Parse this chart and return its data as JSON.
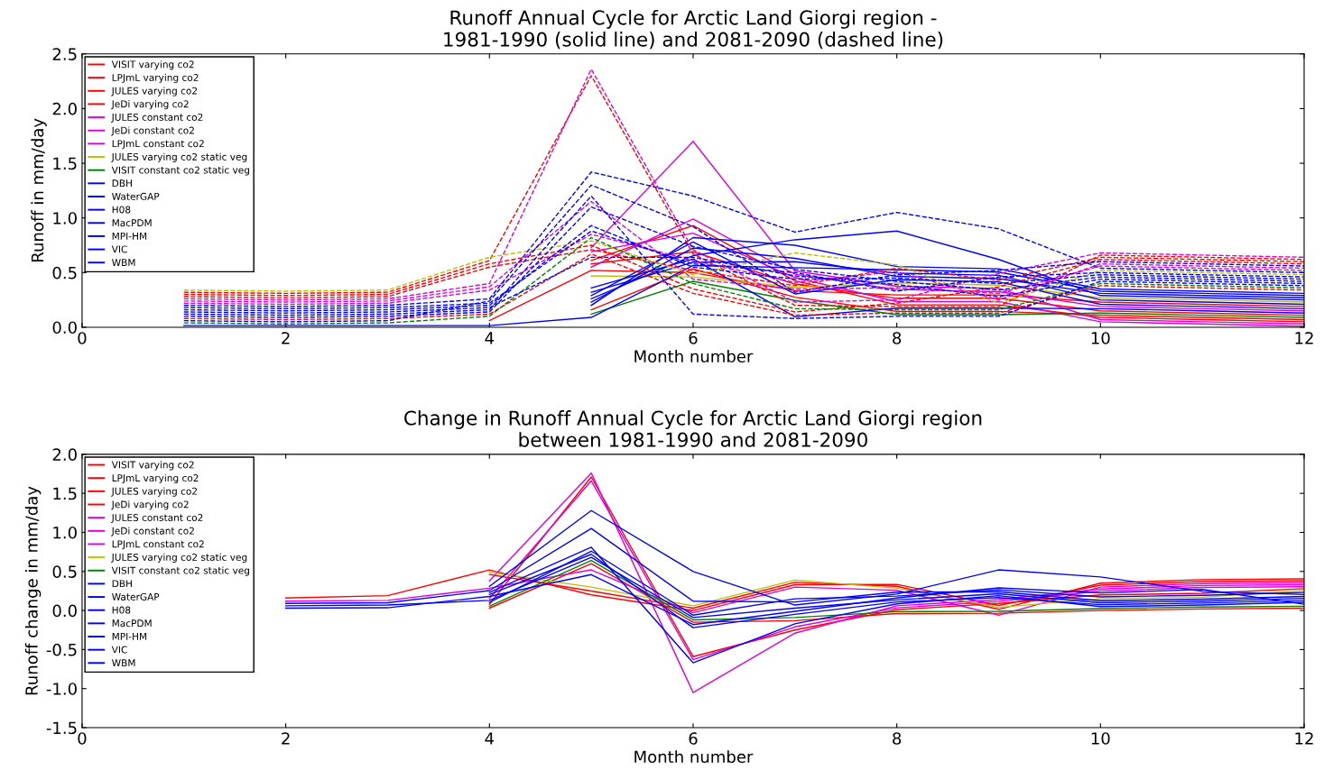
{
  "chart_data": [
    {
      "type": "line",
      "title": "Runoff Annual Cycle for Arctic Land Giorgi region -\n1981-1990 (solid line) and 2081-2090 (dashed line)",
      "xlabel": "Month number",
      "ylabel": "Runoff in mm/day",
      "x": [
        1,
        2,
        3,
        4,
        5,
        6,
        7,
        8,
        9,
        10,
        11,
        12
      ],
      "xlim": [
        0,
        12
      ],
      "xticks": [
        0,
        2,
        4,
        6,
        8,
        10,
        12
      ],
      "ylim": [
        0,
        2.5
      ],
      "yticks": [
        {
          "value": 0,
          "label": "0.0"
        },
        {
          "value": 0.5,
          "label": "0.5"
        },
        {
          "value": 1,
          "label": "1.0"
        },
        {
          "value": 1.5,
          "label": "1.5"
        },
        {
          "value": 2,
          "label": "2.0"
        },
        {
          "value": 2.5,
          "label": "2.5"
        }
      ],
      "grid": false,
      "legend": "top left",
      "series": [
        {
          "name": "VISIT varying co2",
          "color": "#ff0000",
          "line_style": "solid",
          "values": [
            null,
            null,
            null,
            null,
            0.58,
            0.69,
            0.395,
            0.265,
            0.265,
            0.15,
            0.13,
            0.11
          ]
        },
        {
          "name": "LPJmL varying co2",
          "color": "#ff0000",
          "line_style": "solid",
          "values": [
            null,
            null,
            null,
            null,
            0.61,
            0.93,
            0.425,
            0.205,
            0.205,
            0.09,
            0.07,
            0.05
          ]
        },
        {
          "name": "JULES varying co2",
          "color": "#ff0000",
          "line_style": "solid",
          "values": [
            null,
            null,
            null,
            0.06,
            0.52,
            0.5,
            0.335,
            0.295,
            0.295,
            0.23,
            0.21,
            0.19
          ]
        },
        {
          "name": "JeDi varying co2",
          "color": "#ff0000",
          "line_style": "solid",
          "values": [
            null,
            null,
            null,
            null,
            0.16,
            0.535,
            0.275,
            0.145,
            0.145,
            0.11,
            0.09,
            0.07
          ]
        },
        {
          "name": "JULES constant co2",
          "color": "#dd00dd",
          "line_style": "solid",
          "values": [
            null,
            null,
            null,
            null,
            0.55,
            0.99,
            0.485,
            0.345,
            0.325,
            0.19,
            0.17,
            0.15
          ]
        },
        {
          "name": "JeDi constant co2",
          "color": "#dd00dd",
          "line_style": "solid",
          "values": [
            null,
            null,
            null,
            null,
            0.73,
            1.7,
            0.515,
            0.375,
            0.355,
            0.07,
            0.05,
            0.03
          ]
        },
        {
          "name": "LPJmL constant co2",
          "color": "#dd00dd",
          "line_style": "solid",
          "values": [
            null,
            null,
            null,
            null,
            0.69,
            0.86,
            0.455,
            0.235,
            0.235,
            0.05,
            0.03,
            0.01
          ]
        },
        {
          "name": "JULES varying co2 static veg",
          "color": "#bfbf00",
          "line_style": "solid",
          "values": [
            null,
            null,
            null,
            null,
            0.47,
            0.46,
            0.365,
            0.405,
            0.385,
            0.27,
            0.25,
            0.23
          ]
        },
        {
          "name": "VISIT constant co2 static veg",
          "color": "#008000",
          "line_style": "solid",
          "values": [
            null,
            null,
            null,
            null,
            0.12,
            0.42,
            0.245,
            0.115,
            0.115,
            0.13,
            0.11,
            0.09
          ]
        },
        {
          "name": "DBH",
          "color": "#0000ff",
          "line_style": "solid",
          "values": [
            null,
            null,
            null,
            null,
            0.2,
            0.82,
            0.75,
            0.555,
            0.535,
            0.35,
            0.33,
            0.31
          ]
        },
        {
          "name": "WaterGAP",
          "color": "#0000ff",
          "line_style": "solid",
          "values": [
            null,
            null,
            null,
            null,
            0.26,
            0.655,
            0.8,
            0.88,
            0.62,
            0.29,
            0.27,
            0.25
          ]
        },
        {
          "name": "H08",
          "color": "#0000ff",
          "line_style": "solid",
          "values": [
            null,
            null,
            null,
            null,
            0.29,
            0.78,
            0.305,
            0.435,
            0.415,
            0.21,
            0.19,
            0.17
          ]
        },
        {
          "name": "MacPDM",
          "color": "#0000ff",
          "line_style": "solid",
          "values": [
            0.015,
            0.015,
            0.015,
            0.015,
            0.09,
            0.565,
            0.545,
            0.525,
            0.505,
            0.33,
            0.31,
            0.29
          ]
        },
        {
          "name": "MPI-HM",
          "color": "#0000ff",
          "line_style": "solid",
          "values": [
            null,
            null,
            null,
            null,
            0.32,
            0.595,
            0.6,
            0.495,
            0.475,
            0.25,
            0.23,
            0.21
          ]
        },
        {
          "name": "VIC",
          "color": "#0000ff",
          "line_style": "solid",
          "values": [
            null,
            null,
            null,
            null,
            0.23,
            0.725,
            0.63,
            0.465,
            0.445,
            0.31,
            0.29,
            0.27
          ]
        },
        {
          "name": "WBM",
          "color": "#0000ff",
          "line_style": "solid",
          "values": [
            null,
            null,
            null,
            null,
            0.36,
            0.625,
            0.095,
            0.175,
            0.175,
            0.17,
            0.15,
            0.13
          ]
        },
        {
          "color": "#ff0000",
          "line_style": "dashed",
          "values": [
            0.3,
            0.29,
            0.3,
            0.58,
            0.75,
            0.35,
            0.14,
            0.22,
            0.37,
            0.62,
            0.6,
            0.58
          ]
        },
        {
          "color": "#ff0000",
          "line_style": "dashed",
          "values": [
            0.32,
            0.31,
            0.32,
            0.61,
            2.3,
            0.67,
            0.2,
            0.19,
            0.19,
            0.66,
            0.64,
            0.62
          ]
        },
        {
          "color": "#ff0000",
          "line_style": "dashed",
          "values": [
            0.28,
            0.27,
            0.28,
            0.55,
            0.71,
            0.52,
            0.38,
            0.54,
            0.43,
            0.64,
            0.62,
            0.6
          ]
        },
        {
          "color": "#ff0000",
          "line_style": "dashed",
          "values": [
            0.08,
            0.07,
            0.08,
            0.12,
            0.67,
            0.31,
            0.11,
            0.13,
            0.13,
            0.38,
            0.36,
            0.34
          ]
        },
        {
          "color": "#dd00dd",
          "line_style": "dashed",
          "values": [
            0.22,
            0.21,
            0.22,
            0.34,
            0.85,
            0.61,
            0.41,
            0.51,
            0.25,
            0.58,
            0.56,
            0.54
          ]
        },
        {
          "color": "#dd00dd",
          "line_style": "dashed",
          "values": [
            0.26,
            0.25,
            0.26,
            0.4,
            2.36,
            0.71,
            0.23,
            0.25,
            0.49,
            0.68,
            0.66,
            0.64
          ]
        },
        {
          "color": "#dd00dd",
          "line_style": "dashed",
          "values": [
            0.24,
            0.23,
            0.24,
            0.37,
            1.15,
            0.44,
            0.35,
            0.36,
            0.31,
            0.56,
            0.54,
            0.52
          ]
        },
        {
          "color": "#bfbf00",
          "line_style": "dashed",
          "values": [
            0.34,
            0.33,
            0.34,
            0.64,
            0.79,
            0.48,
            0.68,
            0.57,
            0.22,
            0.52,
            0.5,
            0.48
          ]
        },
        {
          "color": "#008000",
          "line_style": "dashed",
          "values": [
            0.04,
            0.03,
            0.04,
            0.1,
            0.82,
            0.4,
            0.17,
            0.16,
            0.16,
            0.4,
            0.38,
            0.36
          ]
        },
        {
          "color": "#0000ff",
          "line_style": "dashed",
          "values": [
            0.2,
            0.19,
            0.2,
            0.26,
            1.42,
            1.2,
            0.87,
            1.05,
            0.9,
            0.54,
            0.52,
            0.5
          ]
        },
        {
          "color": "#0000ff",
          "line_style": "dashed",
          "values": [
            0.06,
            0.05,
            0.06,
            0.24,
            1.3,
            0.92,
            0.32,
            0.48,
            0.52,
            0.6,
            0.58,
            0.56
          ]
        },
        {
          "color": "#0000ff",
          "line_style": "dashed",
          "values": [
            0.12,
            0.11,
            0.12,
            0.16,
            1.2,
            0.12,
            0.08,
            0.1,
            0.1,
            0.42,
            0.4,
            0.38
          ]
        },
        {
          "color": "#0000ff",
          "line_style": "dashed",
          "values": [
            0.18,
            0.17,
            0.18,
            0.22,
            0.88,
            0.58,
            0.5,
            0.33,
            0.46,
            0.5,
            0.48,
            0.46
          ]
        },
        {
          "color": "#0000ff",
          "line_style": "dashed",
          "values": [
            0.16,
            0.15,
            0.16,
            0.2,
            0.93,
            0.55,
            0.44,
            0.45,
            0.4,
            0.48,
            0.46,
            0.44
          ]
        },
        {
          "color": "#0000ff",
          "line_style": "dashed",
          "values": [
            0.1,
            0.09,
            0.1,
            0.14,
            1.1,
            0.74,
            0.53,
            0.42,
            0.34,
            0.46,
            0.44,
            0.42
          ]
        },
        {
          "color": "#0000ff",
          "line_style": "dashed",
          "values": [
            0.14,
            0.13,
            0.14,
            0.18,
            0.64,
            0.64,
            0.47,
            0.39,
            0.28,
            0.44,
            0.42,
            0.4
          ]
        }
      ]
    },
    {
      "type": "line",
      "title": "Change in Runoff Annual Cycle for Arctic Land Giorgi region\nbetween 1981-1990 and 2081-2090",
      "xlabel": "Month number",
      "ylabel": "Runoff change in mm/day",
      "x": [
        2,
        3,
        4,
        5,
        6,
        7,
        8,
        9,
        10,
        11,
        12
      ],
      "xlim": [
        0,
        12
      ],
      "xticks": [
        0,
        2,
        4,
        6,
        8,
        10,
        12
      ],
      "ylim": [
        -1.5,
        2.0
      ],
      "yticks": [
        {
          "value": -1.5,
          "label": "-1.5"
        },
        {
          "value": -1,
          "label": "-1.0"
        },
        {
          "value": -0.5,
          "label": "-0.5"
        },
        {
          "value": 0,
          "label": "0.0"
        },
        {
          "value": 0.5,
          "label": "0.5"
        },
        {
          "value": 1,
          "label": "1.0"
        },
        {
          "value": 1.5,
          "label": "1.5"
        },
        {
          "value": 2,
          "label": "2.0"
        }
      ],
      "grid": false,
      "legend": "top left",
      "series": [
        {
          "name": "VISIT varying co2",
          "color": "#ff0000",
          "line_style": "solid",
          "values": [
            0.16,
            0.19,
            0.52,
            0.2,
            0.0,
            0.33,
            0.335,
            0.065,
            0.325,
            0.37,
            0.38
          ]
        },
        {
          "name": "LPJmL varying co2",
          "color": "#ff0000",
          "line_style": "solid",
          "values": [
            null,
            null,
            0.08,
            1.71,
            -0.59,
            -0.25,
            0.01,
            0.09,
            0.2,
            0.22,
            0.28
          ]
        },
        {
          "name": "JULES varying co2",
          "color": "#ff0000",
          "line_style": "solid",
          "values": [
            null,
            null,
            0.46,
            0.25,
            0.03,
            0.36,
            0.31,
            0.015,
            0.35,
            0.395,
            0.405
          ]
        },
        {
          "name": "JeDi varying co2",
          "color": "#ff0000",
          "line_style": "solid",
          "values": [
            null,
            null,
            0.03,
            0.6,
            -0.15,
            -0.13,
            -0.04,
            -0.035,
            0.0,
            0.02,
            0.03
          ]
        },
        {
          "name": "JULES constant co2",
          "color": "#dd00dd",
          "line_style": "solid",
          "values": [
            0.12,
            0.13,
            0.285,
            0.52,
            -0.03,
            0.3,
            0.26,
            -0.06,
            0.3,
            0.345,
            0.355
          ]
        },
        {
          "name": "JeDi constant co2",
          "color": "#dd00dd",
          "line_style": "solid",
          "values": [
            null,
            null,
            0.38,
            1.76,
            -1.05,
            -0.29,
            0.06,
            0.14,
            0.275,
            0.32,
            0.33
          ]
        },
        {
          "name": "LPJmL constant co2",
          "color": "#dd00dd",
          "line_style": "solid",
          "values": [
            null,
            null,
            0.155,
            1.66,
            -0.63,
            -0.21,
            0.035,
            0.115,
            0.25,
            0.295,
            0.305
          ]
        },
        {
          "name": "JULES varying co2 static veg",
          "color": "#bfbf00",
          "line_style": "solid",
          "values": [
            null,
            null,
            0.49,
            0.3,
            0.06,
            0.39,
            0.285,
            0.04,
            0.15,
            0.17,
            0.255
          ]
        },
        {
          "name": "VISIT constant co2 static veg",
          "color": "#008000",
          "line_style": "solid",
          "values": [
            null,
            null,
            0.055,
            0.64,
            -0.12,
            -0.09,
            -0.015,
            -0.01,
            0.025,
            0.045,
            0.055
          ]
        },
        {
          "name": "DBH",
          "color": "#0000ff",
          "line_style": "solid",
          "values": [
            null,
            null,
            0.31,
            1.28,
            0.5,
            0.07,
            0.21,
            0.52,
            0.43,
            0.245,
            0.205
          ]
        },
        {
          "name": "WaterGAP",
          "color": "#0000ff",
          "line_style": "solid",
          "values": [
            0.09,
            0.1,
            0.255,
            1.05,
            0.12,
            0.11,
            0.235,
            0.24,
            0.125,
            0.145,
            0.18
          ]
        },
        {
          "name": "H08",
          "color": "#0000ff",
          "line_style": "solid",
          "values": [
            null,
            null,
            0.23,
            0.81,
            -0.67,
            -0.17,
            0.085,
            0.19,
            0.05,
            0.07,
            0.105
          ]
        },
        {
          "name": "MacPDM",
          "color": "#0000ff",
          "line_style": "solid",
          "values": [
            null,
            null,
            0.205,
            0.72,
            -0.22,
            -0.05,
            0.11,
            0.165,
            0.075,
            0.095,
            0.13
          ]
        },
        {
          "name": "MPI-HM",
          "color": "#0000ff",
          "line_style": "solid",
          "values": [
            0.06,
            0.07,
            0.13,
            0.68,
            -0.09,
            0.03,
            0.135,
            0.215,
            0.1,
            0.12,
            0.155
          ]
        },
        {
          "name": "VIC",
          "color": "#0000ff",
          "line_style": "solid",
          "values": [
            null,
            null,
            0.105,
            0.76,
            -0.06,
            0.15,
            0.185,
            0.265,
            0.175,
            0.195,
            0.23
          ]
        },
        {
          "name": "WBM",
          "color": "#0000ff",
          "line_style": "solid",
          "values": [
            0.03,
            0.035,
            0.18,
            0.46,
            -0.18,
            -0.01,
            0.16,
            0.29,
            0.225,
            0.27,
            0.08
          ]
        }
      ]
    }
  ]
}
